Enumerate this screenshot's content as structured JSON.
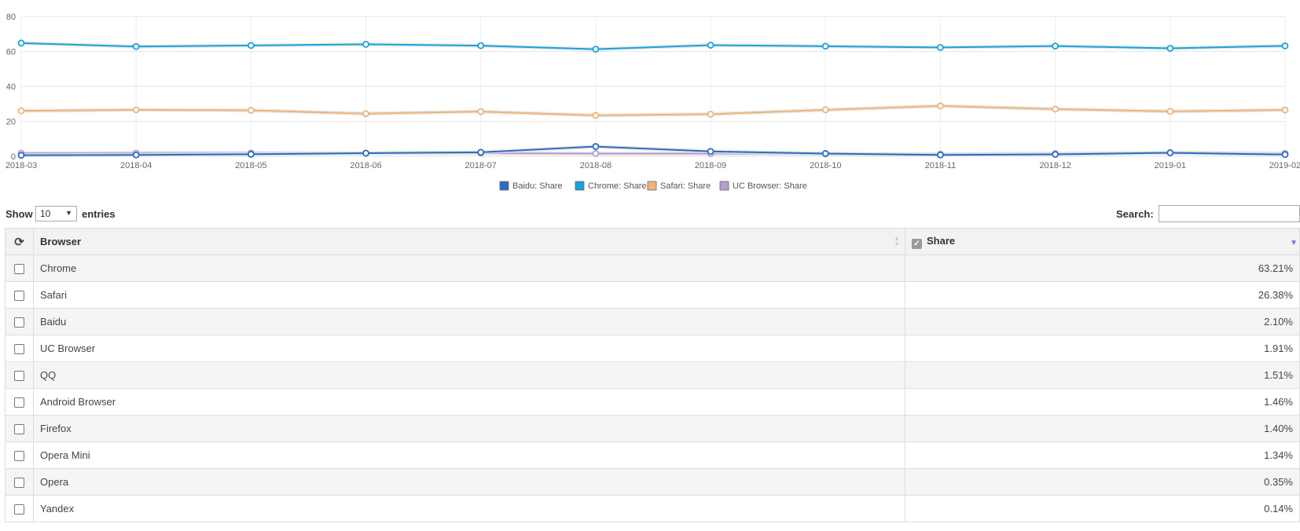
{
  "chart_data": {
    "type": "line",
    "x": [
      "2018-03",
      "2018-04",
      "2018-05",
      "2018-06",
      "2018-07",
      "2018-08",
      "2018-09",
      "2018-10",
      "2018-11",
      "2018-12",
      "2019-01",
      "2019-02"
    ],
    "ylim": [
      0,
      80
    ],
    "yticks": [
      0,
      20,
      40,
      60,
      80
    ],
    "grid": true,
    "legend_position": "bottom",
    "series": [
      {
        "name": "Baidu: Share",
        "color": "#2b6cc4",
        "values": [
          0.6,
          0.8,
          1.2,
          1.8,
          2.3,
          5.6,
          2.8,
          1.6,
          0.8,
          1.1,
          2.0,
          1.0
        ]
      },
      {
        "name": "Chrome: Share",
        "color": "#17a2dc",
        "values": [
          64.8,
          62.8,
          63.4,
          64.1,
          63.3,
          61.3,
          63.6,
          63.0,
          62.3,
          63.1,
          61.8,
          63.2
        ]
      },
      {
        "name": "Safari: Share",
        "color": "#f0b27a",
        "values": [
          26.0,
          26.6,
          26.3,
          24.4,
          25.6,
          23.4,
          24.1,
          26.6,
          28.8,
          27.0,
          25.7,
          26.5
        ]
      },
      {
        "name": "UC Browser: Share",
        "color": "#b59dd0",
        "values": [
          1.8,
          1.9,
          1.9,
          1.8,
          1.8,
          1.6,
          1.6,
          1.4,
          1.3,
          1.6,
          2.1,
          1.7
        ]
      }
    ]
  },
  "controls": {
    "show_label": "Show",
    "page_length": "10",
    "entries_label": "entries",
    "search_label": "Search:",
    "search_value": ""
  },
  "table": {
    "headers": {
      "browser": "Browser",
      "share": "Share"
    },
    "rows": [
      {
        "browser": "Chrome",
        "share": "63.21%"
      },
      {
        "browser": "Safari",
        "share": "26.38%"
      },
      {
        "browser": "Baidu",
        "share": "2.10%"
      },
      {
        "browser": "UC Browser",
        "share": "1.91%"
      },
      {
        "browser": "QQ",
        "share": "1.51%"
      },
      {
        "browser": "Android Browser",
        "share": "1.46%"
      },
      {
        "browser": "Firefox",
        "share": "1.40%"
      },
      {
        "browser": "Opera Mini",
        "share": "1.34%"
      },
      {
        "browser": "Opera",
        "share": "0.35%"
      },
      {
        "browser": "Yandex",
        "share": "0.14%"
      }
    ]
  }
}
